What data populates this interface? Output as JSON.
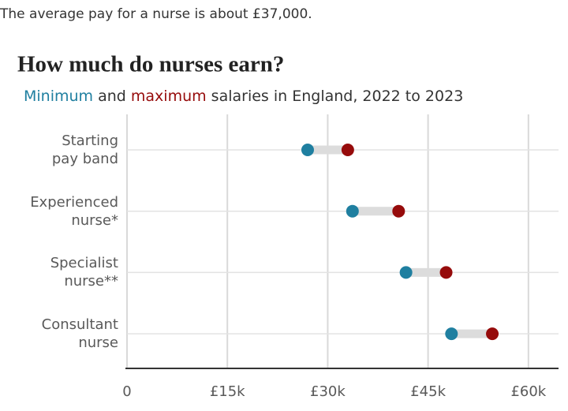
{
  "intro": "The average pay for a nurse is about £37,000.",
  "chart_data": {
    "type": "dumbbell",
    "title": "How much do nurses earn?",
    "subtitle": [
      " and ",
      " salaries in England, 2022 to 2023"
    ],
    "categories": [
      "Starting\npay band",
      "Experienced\nnurse*",
      "Specialist\nnurse**",
      "Consultant\nnurse"
    ],
    "series": [
      {
        "name": "Minimum",
        "color": "#1f7fa0",
        "values": [
          27000,
          33700,
          41700,
          48500
        ]
      },
      {
        "name": "maximum",
        "color": "#960b0b",
        "values": [
          33000,
          40600,
          47700,
          54600
        ]
      }
    ],
    "connector_color": "#dcdcdc",
    "xlim": [
      0,
      64500
    ],
    "xticks": [
      0,
      {
        "value": 15000,
        "label": "£15k"
      },
      {
        "value": 30000,
        "label": "£30k"
      },
      {
        "value": 45000,
        "label": "£45k"
      },
      {
        "value": 60000,
        "label": "£60k"
      }
    ],
    "grid": true
  }
}
